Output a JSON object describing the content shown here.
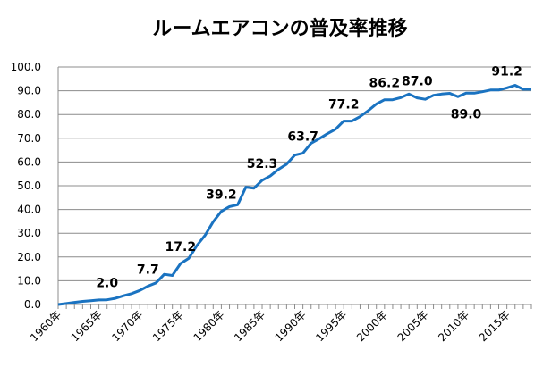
{
  "chart_data": {
    "type": "line",
    "title": "ルームエアコンの普及率推移",
    "xlabel": "",
    "ylabel": "",
    "ylim": [
      0,
      100
    ],
    "yticks": [
      "0.0",
      "10.0",
      "20.0",
      "30.0",
      "40.0",
      "50.0",
      "60.0",
      "70.0",
      "80.0",
      "90.0",
      "100.0"
    ],
    "grid": true,
    "x_start": 1960,
    "x_tick_labels": [
      {
        "year": 1960,
        "label": "1960年"
      },
      {
        "year": 1965,
        "label": "1965年"
      },
      {
        "year": 1970,
        "label": "1970年"
      },
      {
        "year": 1975,
        "label": "1975年"
      },
      {
        "year": 1980,
        "label": "1980年"
      },
      {
        "year": 1985,
        "label": "1985年"
      },
      {
        "year": 1990,
        "label": "1990年"
      },
      {
        "year": 1995,
        "label": "1995年"
      },
      {
        "year": 2000,
        "label": "2000年"
      },
      {
        "year": 2005,
        "label": "2005年"
      },
      {
        "year": 2010,
        "label": "2010年"
      },
      {
        "year": 2015,
        "label": "2015年"
      }
    ],
    "series": [
      {
        "name": "普及率",
        "color": "#1a73c1",
        "values": [
          0,
          0.4,
          0.9,
          1.3,
          1.6,
          1.9,
          2.0,
          2.6,
          3.7,
          4.6,
          5.9,
          7.7,
          9.1,
          12.7,
          12.2,
          17.2,
          19.4,
          24.8,
          29.1,
          34.8,
          39.2,
          41.2,
          42.0,
          49.4,
          49.0,
          52.3,
          54.1,
          56.9,
          59.1,
          62.9,
          63.7,
          67.9,
          69.8,
          71.9,
          73.8,
          77.2,
          77.2,
          79.1,
          81.6,
          84.4,
          86.2,
          86.2,
          87.1,
          88.6,
          87.0,
          86.4,
          88.1,
          88.6,
          88.9,
          87.5,
          89.0,
          89.0,
          89.6,
          90.3,
          90.3,
          91.2,
          92.3,
          90.6,
          90.6
        ]
      }
    ],
    "data_labels": [
      {
        "year": 1966,
        "text": "2.0",
        "pos": "above"
      },
      {
        "year": 1971,
        "text": "7.7",
        "pos": "above"
      },
      {
        "year": 1975,
        "text": "17.2",
        "pos": "above"
      },
      {
        "year": 1980,
        "text": "39.2",
        "pos": "above"
      },
      {
        "year": 1985,
        "text": "52.3",
        "pos": "above"
      },
      {
        "year": 1990,
        "text": "63.7",
        "pos": "above"
      },
      {
        "year": 1995,
        "text": "77.2",
        "pos": "above"
      },
      {
        "year": 2000,
        "text": "86.2",
        "pos": "above"
      },
      {
        "year": 2004,
        "text": "87.0",
        "pos": "above"
      },
      {
        "year": 2010,
        "text": "89.0",
        "pos": "below"
      },
      {
        "year": 2015,
        "text": "91.2",
        "pos": "above"
      }
    ]
  }
}
